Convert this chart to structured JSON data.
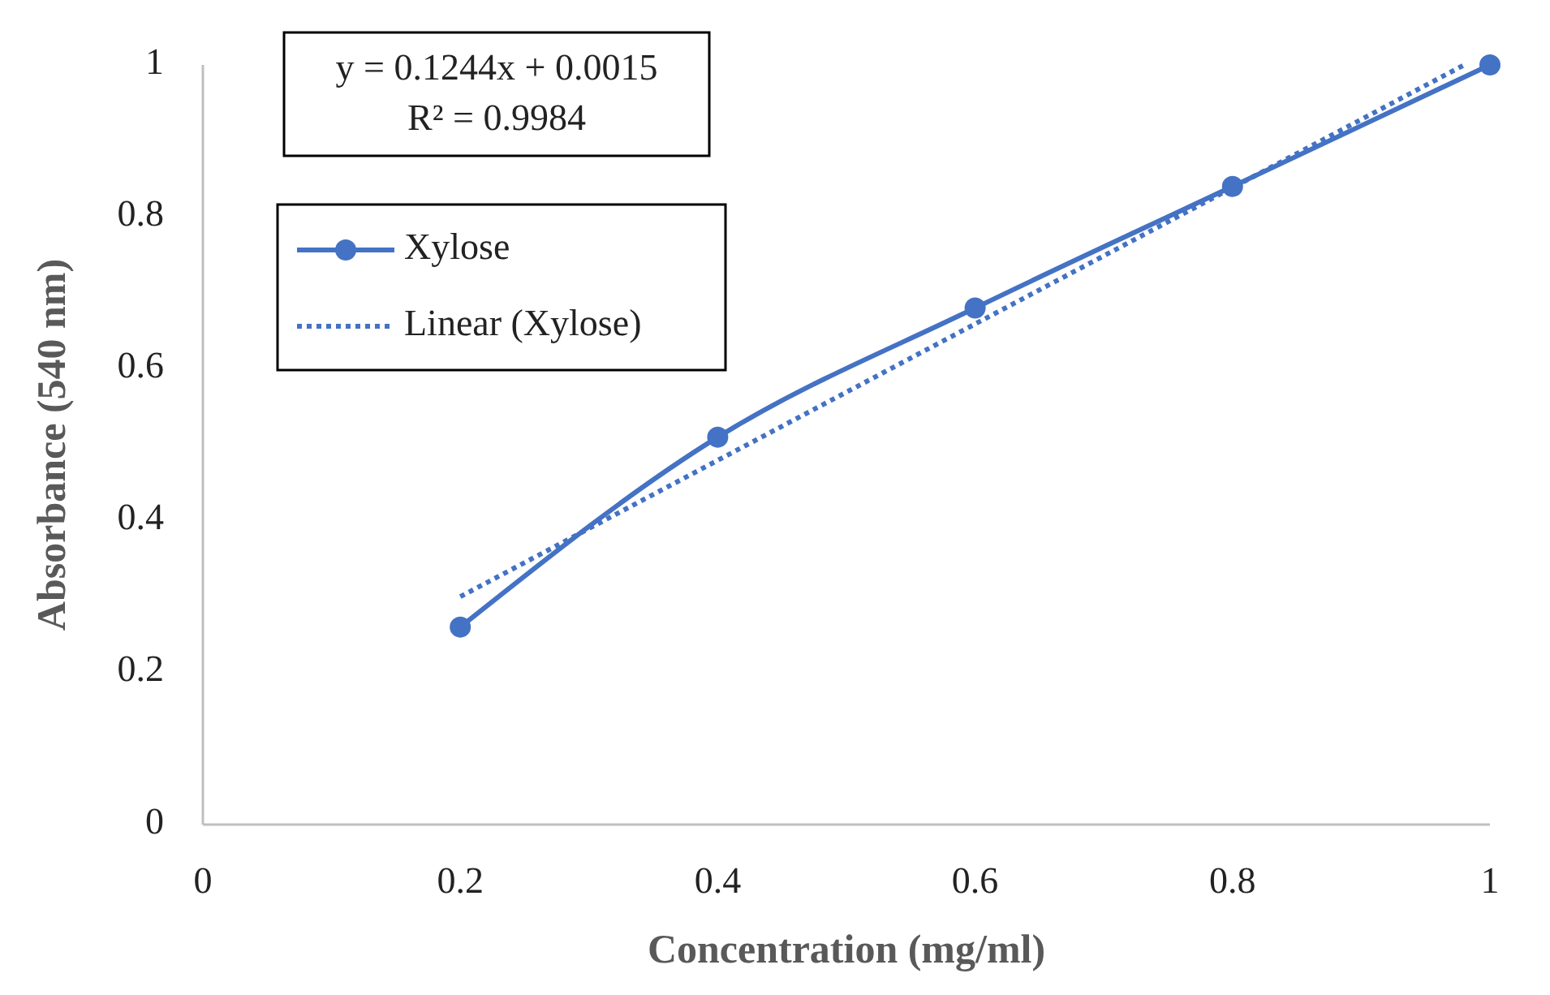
{
  "chart_data": {
    "type": "line",
    "xlabel": "Concentration (mg/ml)",
    "ylabel": "Absorbance (540 nm)",
    "xlim": [
      0,
      1
    ],
    "xticks": [
      0,
      0.2,
      0.4,
      0.6,
      0.8,
      1
    ],
    "ylim": [
      0,
      1
    ],
    "yticks": [
      0,
      0.2,
      0.4,
      0.6,
      0.8,
      1
    ],
    "x": [
      0.2,
      0.4,
      0.6,
      0.8,
      1
    ],
    "series": [
      {
        "name": "Xylose",
        "color": "#4472c4",
        "values": [
          0.26,
          0.51,
          0.68,
          0.84,
          1.0
        ],
        "marker": "circle",
        "line_style": "solid"
      },
      {
        "name": "Linear (Xylose)",
        "type": "line",
        "color": "#4472c4",
        "x": [
          0.2,
          0.98
        ],
        "values": [
          0.3,
          1.0
        ],
        "marker": "none",
        "line_style": "dotted"
      }
    ],
    "annotations": [
      "y = 0.1244x + 0.0015",
      "R² = 0.9984"
    ],
    "legend": "top left",
    "grid": false
  }
}
